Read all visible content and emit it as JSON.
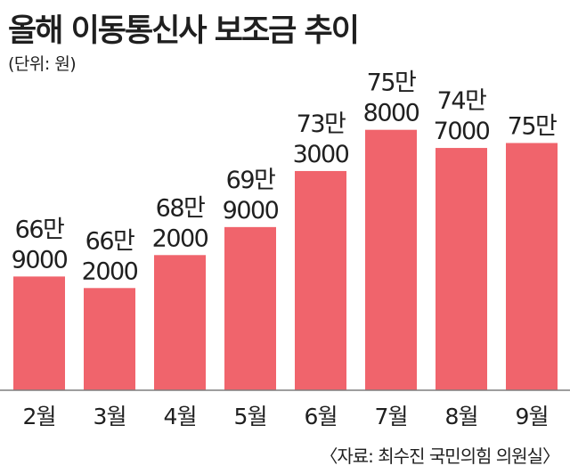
{
  "title": "올해 이동통신사 보조금 추이",
  "unit": "(단위: 원)",
  "source": "〈자료: 최수진 국민의힘 의원실〉",
  "colors": {
    "bar": "#f0646c",
    "baseline": "#7f7f7f",
    "text": "#1f1f1f"
  },
  "chart_data": {
    "type": "bar",
    "title": "올해 이동통신사 보조금 추이",
    "categories": [
      "2월",
      "3월",
      "4월",
      "5월",
      "6월",
      "7월",
      "8월",
      "9월"
    ],
    "values": [
      669000,
      662000,
      682000,
      699000,
      733000,
      758000,
      747000,
      750000
    ],
    "value_labels": [
      [
        "66만",
        "9000"
      ],
      [
        "66만",
        "2000"
      ],
      [
        "68만",
        "2000"
      ],
      [
        "69만",
        "9000"
      ],
      [
        "73만",
        "3000"
      ],
      [
        "75만",
        "8000"
      ],
      [
        "74만",
        "7000"
      ],
      [
        "75만"
      ]
    ],
    "ylim": [
      600000,
      760000
    ],
    "grid": false,
    "legend": "none"
  }
}
